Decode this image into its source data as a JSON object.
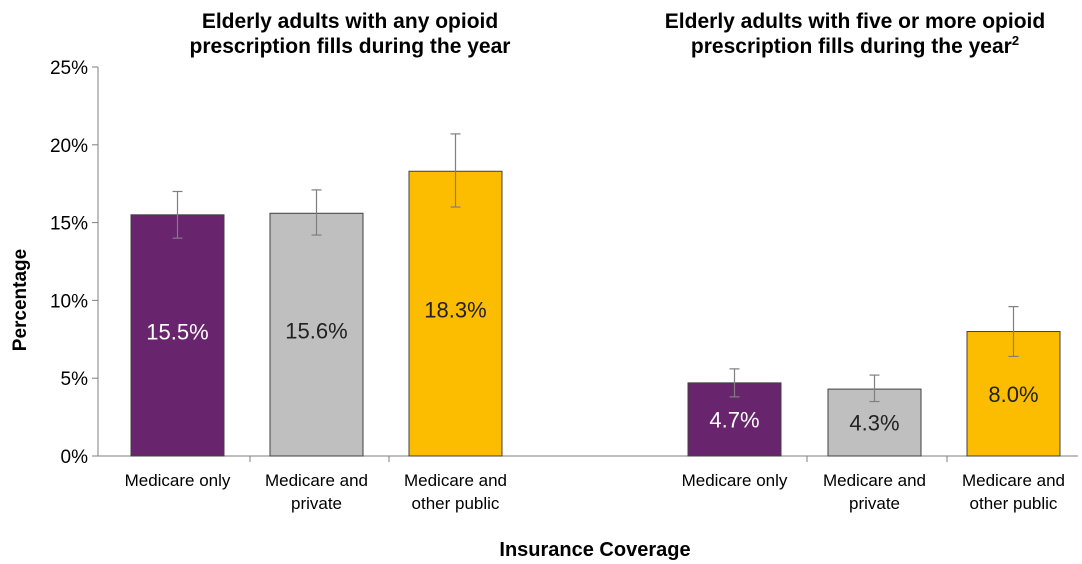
{
  "chart_data": {
    "type": "bar",
    "ylabel": "Percentage",
    "xlabel": "Insurance Coverage",
    "ylim": [
      0,
      25
    ],
    "yticks": [
      "0%",
      "5%",
      "10%",
      "15%",
      "20%",
      "25%"
    ],
    "grid": false,
    "panels": [
      {
        "title_lines": [
          "Elderly adults with any opioid",
          "prescription fills during the year"
        ],
        "title_superscript": "",
        "categories": [
          [
            "Medicare only"
          ],
          [
            "Medicare and",
            "private"
          ],
          [
            "Medicare and",
            "other public"
          ]
        ],
        "values": [
          15.5,
          15.6,
          18.3
        ],
        "labels": [
          "15.5%",
          "15.6%",
          "18.3%"
        ],
        "error_low": [
          14.0,
          14.2,
          16.0
        ],
        "error_high": [
          17.0,
          17.1,
          20.7
        ]
      },
      {
        "title_lines": [
          "Elderly adults with five or more opioid",
          "prescription fills during the year"
        ],
        "title_superscript": "2",
        "categories": [
          [
            "Medicare only"
          ],
          [
            "Medicare and",
            "private"
          ],
          [
            "Medicare and",
            "other public"
          ]
        ],
        "values": [
          4.7,
          4.3,
          8.0
        ],
        "labels": [
          "4.7%",
          "4.3%",
          "8.0%"
        ],
        "error_low": [
          3.8,
          3.5,
          6.4
        ],
        "error_high": [
          5.6,
          5.2,
          9.6
        ]
      }
    ],
    "colors": [
      "#68246d",
      "#bfbfbf",
      "#fcbd00"
    ],
    "label_colors": [
      "#ffffff",
      "#222222",
      "#222222"
    ],
    "error_color": "#7f7f7f"
  }
}
